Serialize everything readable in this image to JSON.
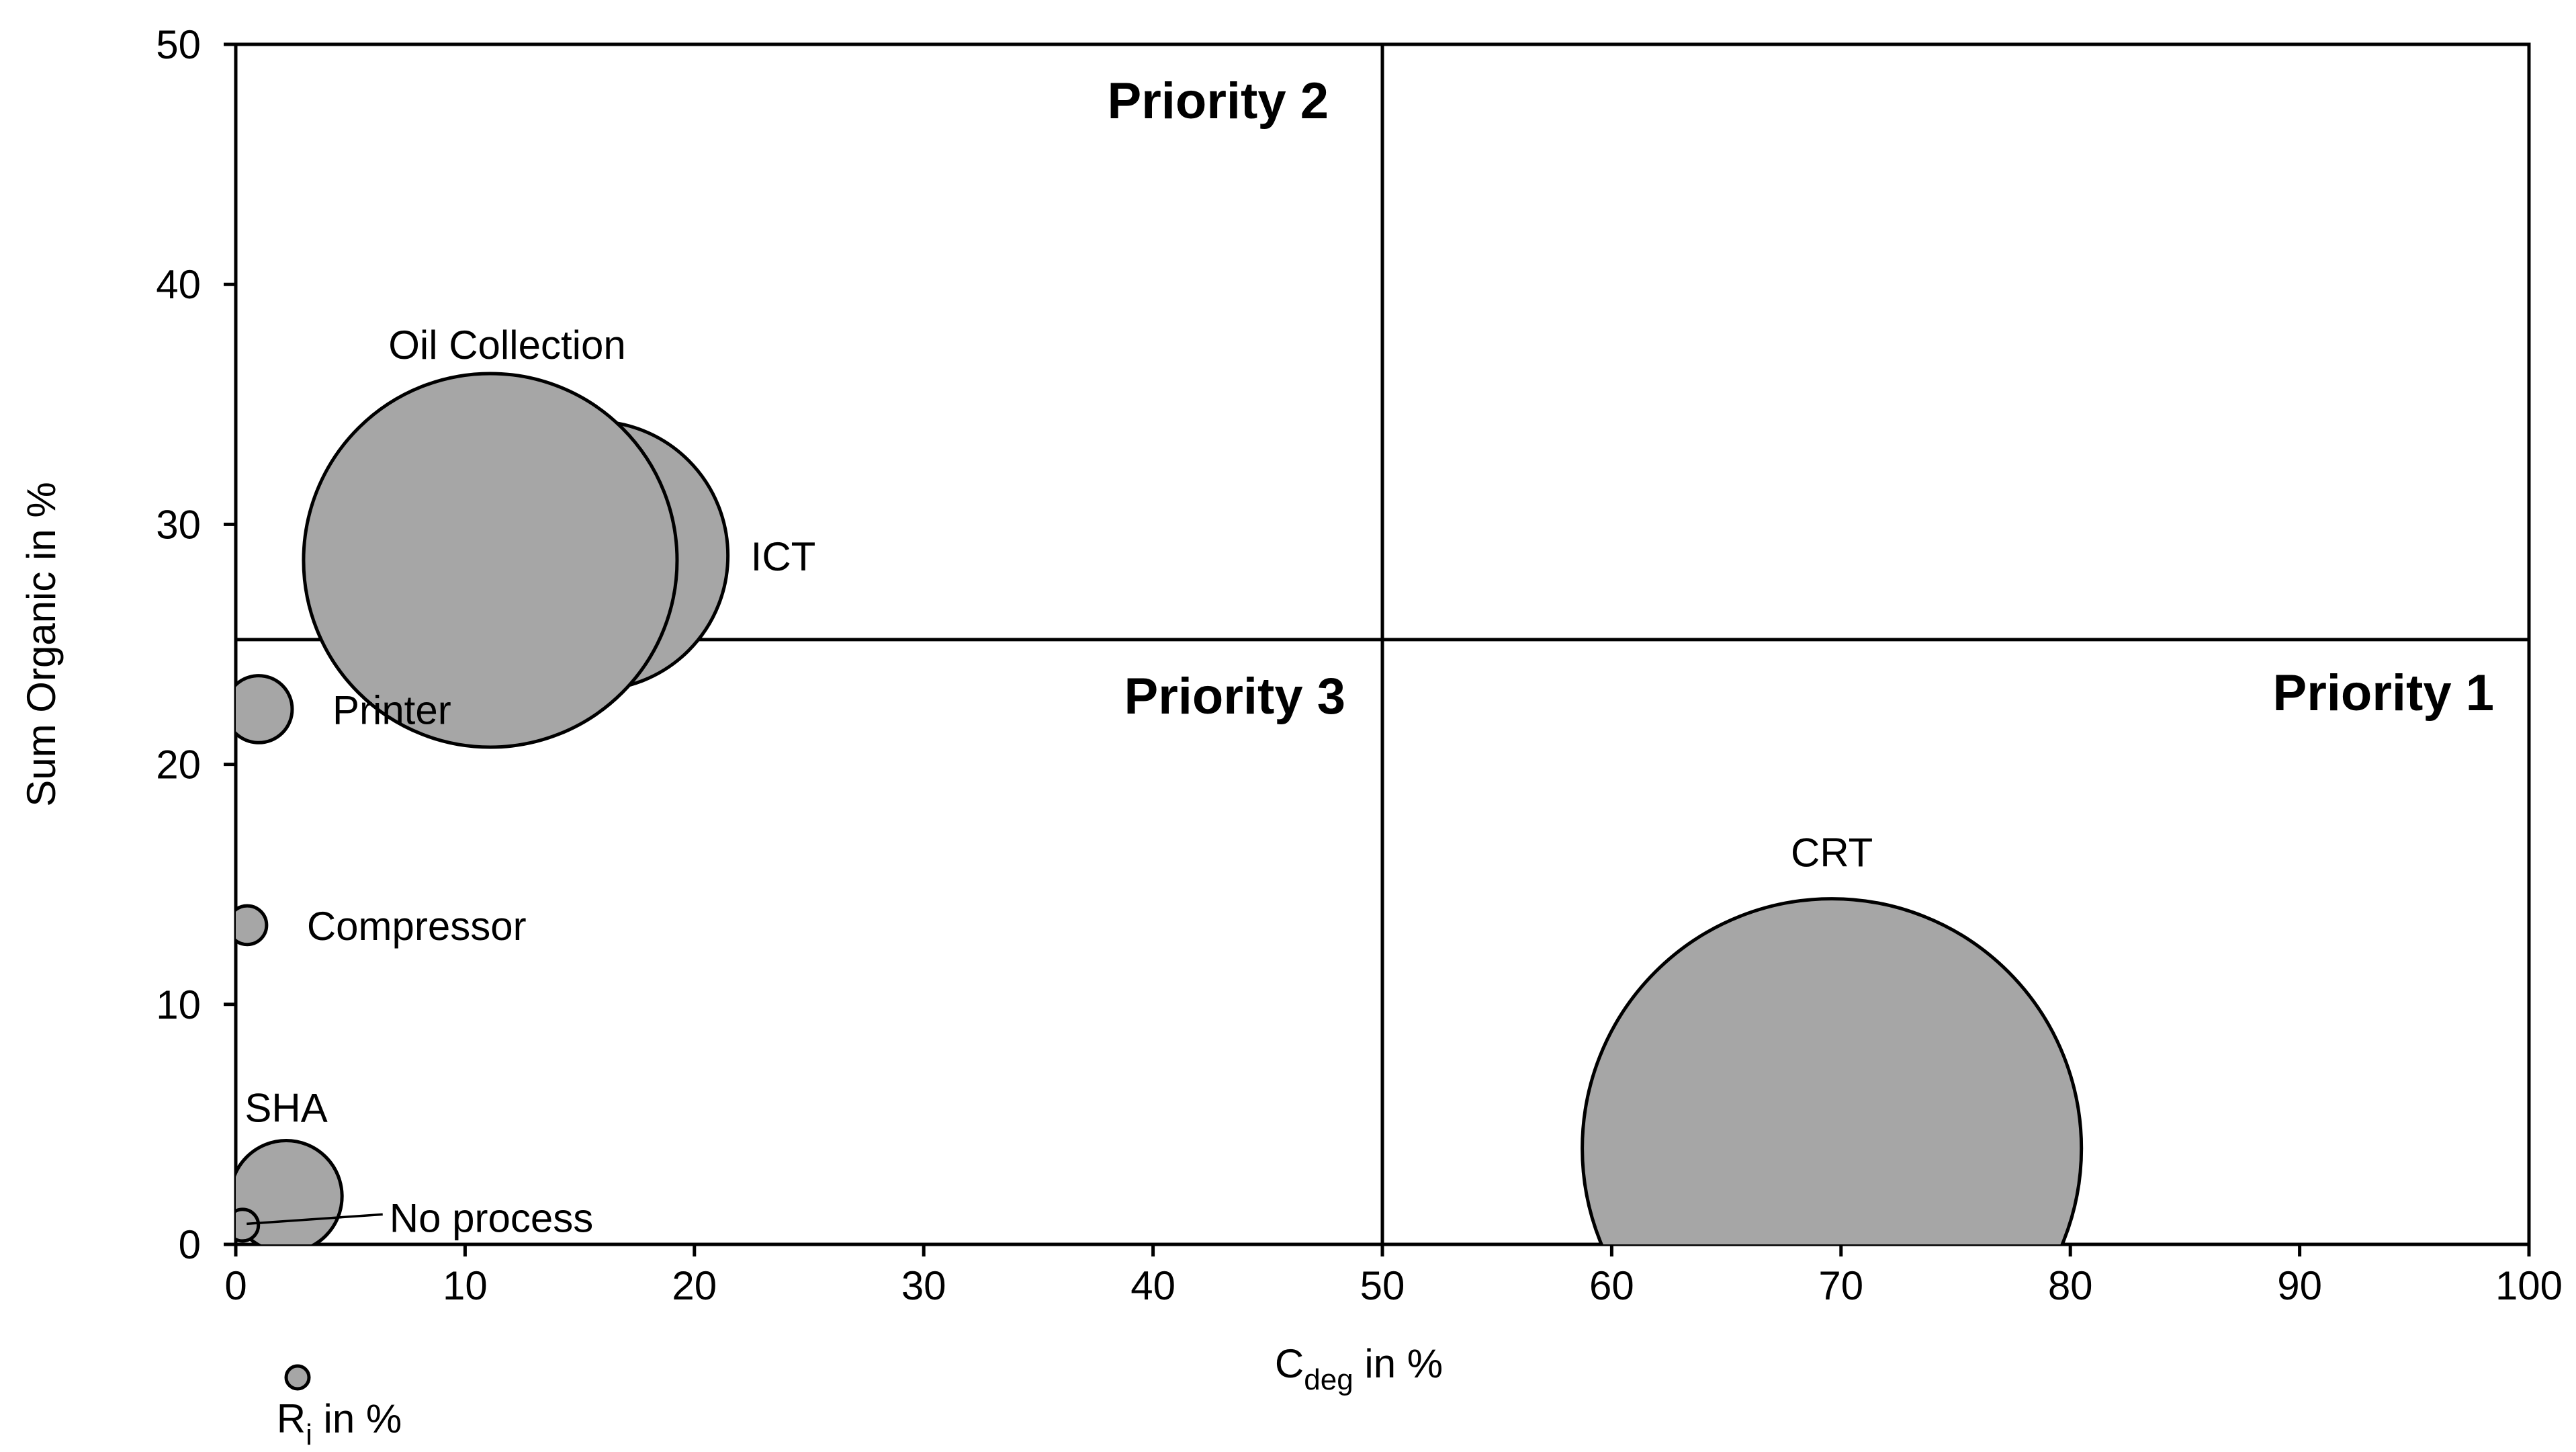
{
  "chart_data": {
    "type": "bubble",
    "xlabel": {
      "main": "C",
      "sub": "deg",
      "suffix": " in %"
    },
    "ylabel": "Sum Organic in %",
    "xlim": [
      0,
      100
    ],
    "ylim": [
      0,
      50
    ],
    "xticks": [
      0,
      10,
      20,
      30,
      40,
      50,
      60,
      70,
      80,
      90,
      100
    ],
    "yticks": [
      0,
      10,
      20,
      30,
      40,
      50
    ],
    "grid": false,
    "dividers": {
      "x": 50,
      "y": 25.2
    },
    "quadrants": [
      {
        "key": "p2",
        "label": "Priority 2"
      },
      {
        "key": "p3",
        "label": "Priority 3"
      },
      {
        "key": "p1",
        "label": "Priority 1"
      }
    ],
    "size_legend": {
      "label_main": "R",
      "label_sub": "i",
      "label_suffix": " in %"
    },
    "bubbles": [
      {
        "name": "ICT",
        "x": 15.6,
        "y": 28.7,
        "size": 14.5
      },
      {
        "name": "Oil Collection",
        "x": 11.1,
        "y": 28.5,
        "size": 28
      },
      {
        "name": "Printer",
        "x": 1.0,
        "y": 22.3,
        "size": 0.9
      },
      {
        "name": "Compressor",
        "x": 0.5,
        "y": 13.3,
        "size": 0.3
      },
      {
        "name": "SHA",
        "x": 2.2,
        "y": 2.0,
        "size": 2.5
      },
      {
        "name": "No process",
        "x": 0.3,
        "y": 0.8,
        "size": 0.2
      },
      {
        "name": "CRT",
        "x": 69.6,
        "y": 4.0,
        "size": 50
      }
    ]
  }
}
